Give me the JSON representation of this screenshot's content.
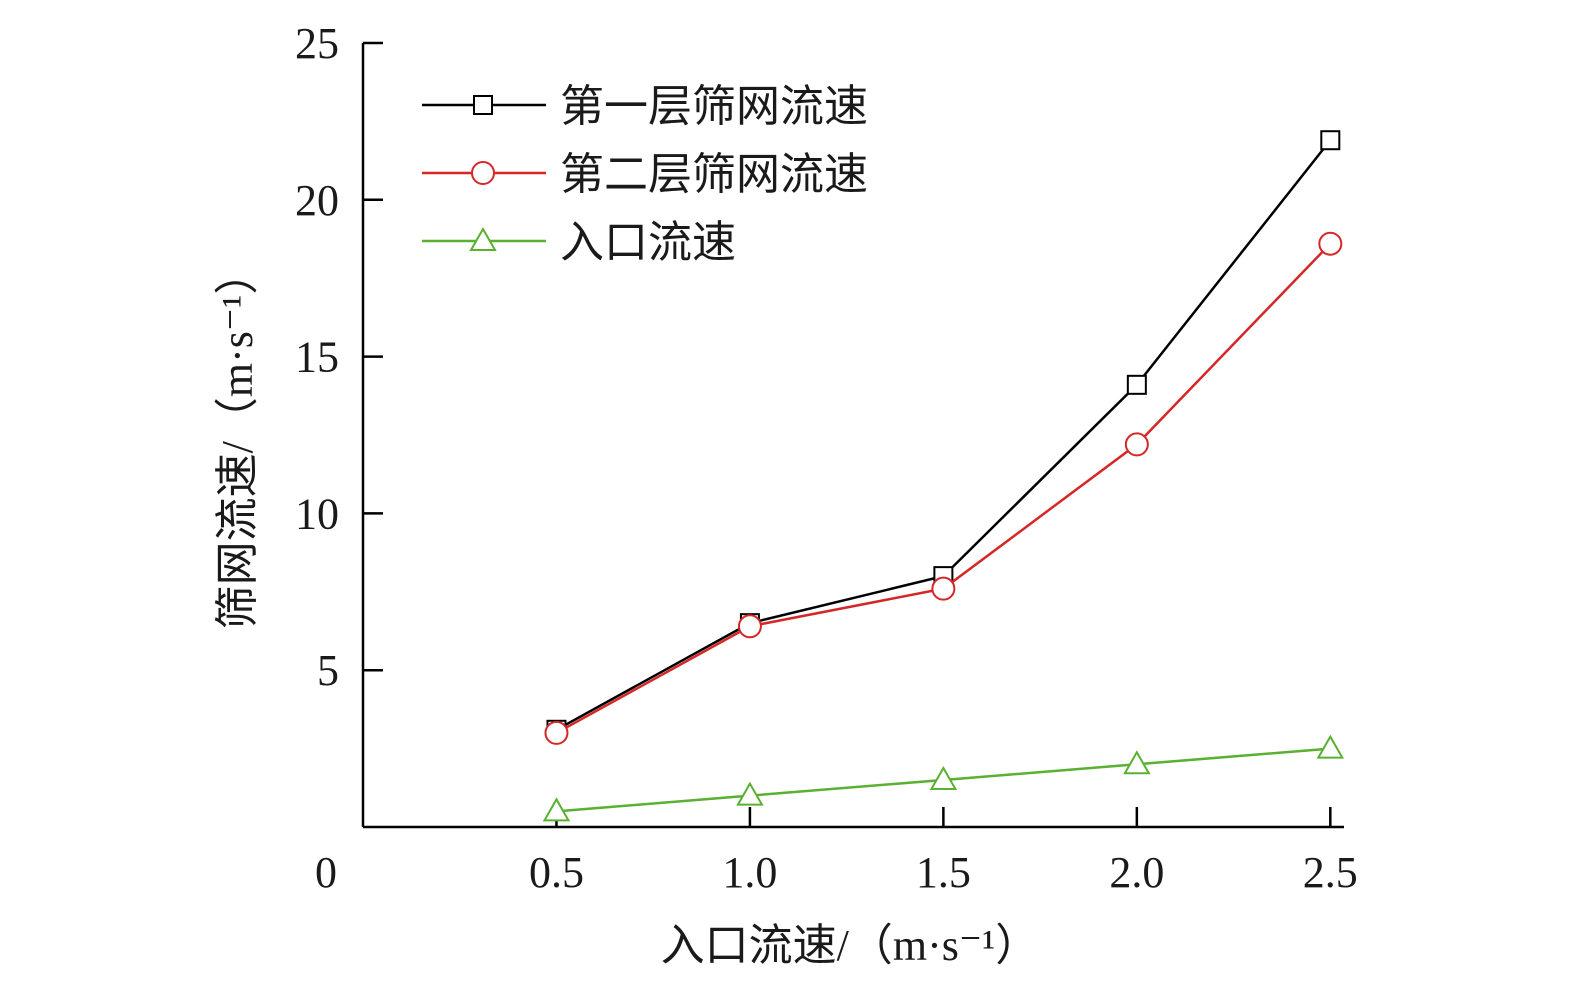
{
  "chart_data": {
    "type": "line",
    "title": "",
    "xlabel": "入口流速/（m·s⁻¹）",
    "ylabel": "筛网流速/（m·s⁻¹）",
    "x": [
      0.5,
      1.0,
      1.5,
      2.0,
      2.5
    ],
    "x_tick_labels": [
      "0.5",
      "1.0",
      "1.5",
      "2.0",
      "2.5"
    ],
    "y_tick_labels": [
      "5",
      "10",
      "15",
      "20",
      "25"
    ],
    "origin_label": "0",
    "xlim": [
      0.0,
      2.6
    ],
    "ylim": [
      0,
      25
    ],
    "grid": false,
    "legend_position": "top-left",
    "series": [
      {
        "name": "第一层筛网流速",
        "marker": "square",
        "color": "#000000",
        "values": [
          3.1,
          6.5,
          8.0,
          14.1,
          21.9
        ]
      },
      {
        "name": "第二层筛网流速",
        "marker": "circle",
        "color": "#d62728",
        "values": [
          3.0,
          6.4,
          7.6,
          12.2,
          18.6
        ]
      },
      {
        "name": "入口流速",
        "marker": "triangle",
        "color": "#5ab031",
        "values": [
          0.5,
          1.0,
          1.5,
          2.0,
          2.5
        ]
      }
    ]
  }
}
